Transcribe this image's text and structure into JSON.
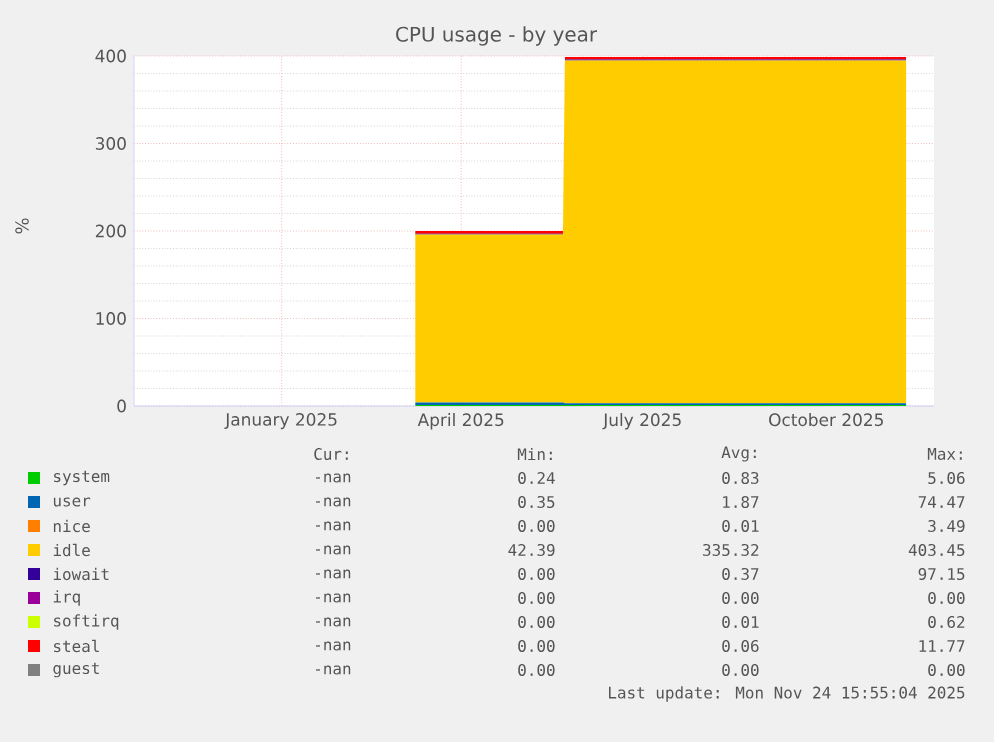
{
  "chart_data": {
    "type": "area",
    "stacked": true,
    "title": "CPU usage - by year",
    "ylabel": "%",
    "x": [
      "2025-03-09",
      "2025-05-22",
      "2025-05-23",
      "2025-11-10"
    ],
    "xlim": [
      "2024-10-19",
      "2025-11-24"
    ],
    "xticks": [
      {
        "value": "2025-01-01",
        "label": "January 2025"
      },
      {
        "value": "2025-04-01",
        "label": "April 2025"
      },
      {
        "value": "2025-07-01",
        "label": "July 2025"
      },
      {
        "value": "2025-10-01",
        "label": "October 2025"
      }
    ],
    "ylim": [
      0,
      400
    ],
    "yticks": [
      0,
      100,
      200,
      300,
      400
    ],
    "grid": true,
    "legend": "bottom",
    "series": [
      {
        "name": "system",
        "color": "#00cc00",
        "values": [
          1,
          1,
          1,
          1
        ]
      },
      {
        "name": "user",
        "color": "#0066b3",
        "values": [
          3,
          3,
          2,
          2
        ]
      },
      {
        "name": "nice",
        "color": "#ff8000",
        "values": [
          null,
          null,
          null,
          null
        ]
      },
      {
        "name": "idle",
        "color": "#ffcc00",
        "values": [
          192,
          192,
          392,
          392
        ]
      },
      {
        "name": "iowait",
        "color": "#330099",
        "values": [
          1,
          1,
          1,
          1
        ]
      },
      {
        "name": "irq",
        "color": "#990099",
        "values": [
          null,
          null,
          null,
          null
        ]
      },
      {
        "name": "softirq",
        "color": "#ccff00",
        "values": [
          null,
          null,
          null,
          null
        ]
      },
      {
        "name": "steal",
        "color": "#ff0000",
        "values": [
          3,
          3,
          3,
          3
        ]
      },
      {
        "name": "guest",
        "color": "#808080",
        "values": [
          null,
          null,
          null,
          null
        ]
      }
    ],
    "annotations": [
      "Cur:",
      "Min:",
      "Avg:",
      "Max:",
      "-nan",
      "0.24",
      "0.83",
      "5.06",
      "-nan",
      "0.35",
      "1.87",
      "74.47",
      "-nan",
      "0.00",
      "0.01",
      "3.49",
      "-nan",
      "42.39",
      "335.32",
      "403.45",
      "-nan",
      "0.00",
      "0.37",
      "97.15",
      "-nan",
      "0.00",
      "0.00",
      "0.00",
      "-nan",
      "0.00",
      "0.01",
      "0.62",
      "-nan",
      "0.00",
      "0.06",
      "11.77",
      "-nan",
      "0.00",
      "0.00",
      "0.00",
      "Last update: Mon Nov 24 15:55:04 2025"
    ]
  }
}
